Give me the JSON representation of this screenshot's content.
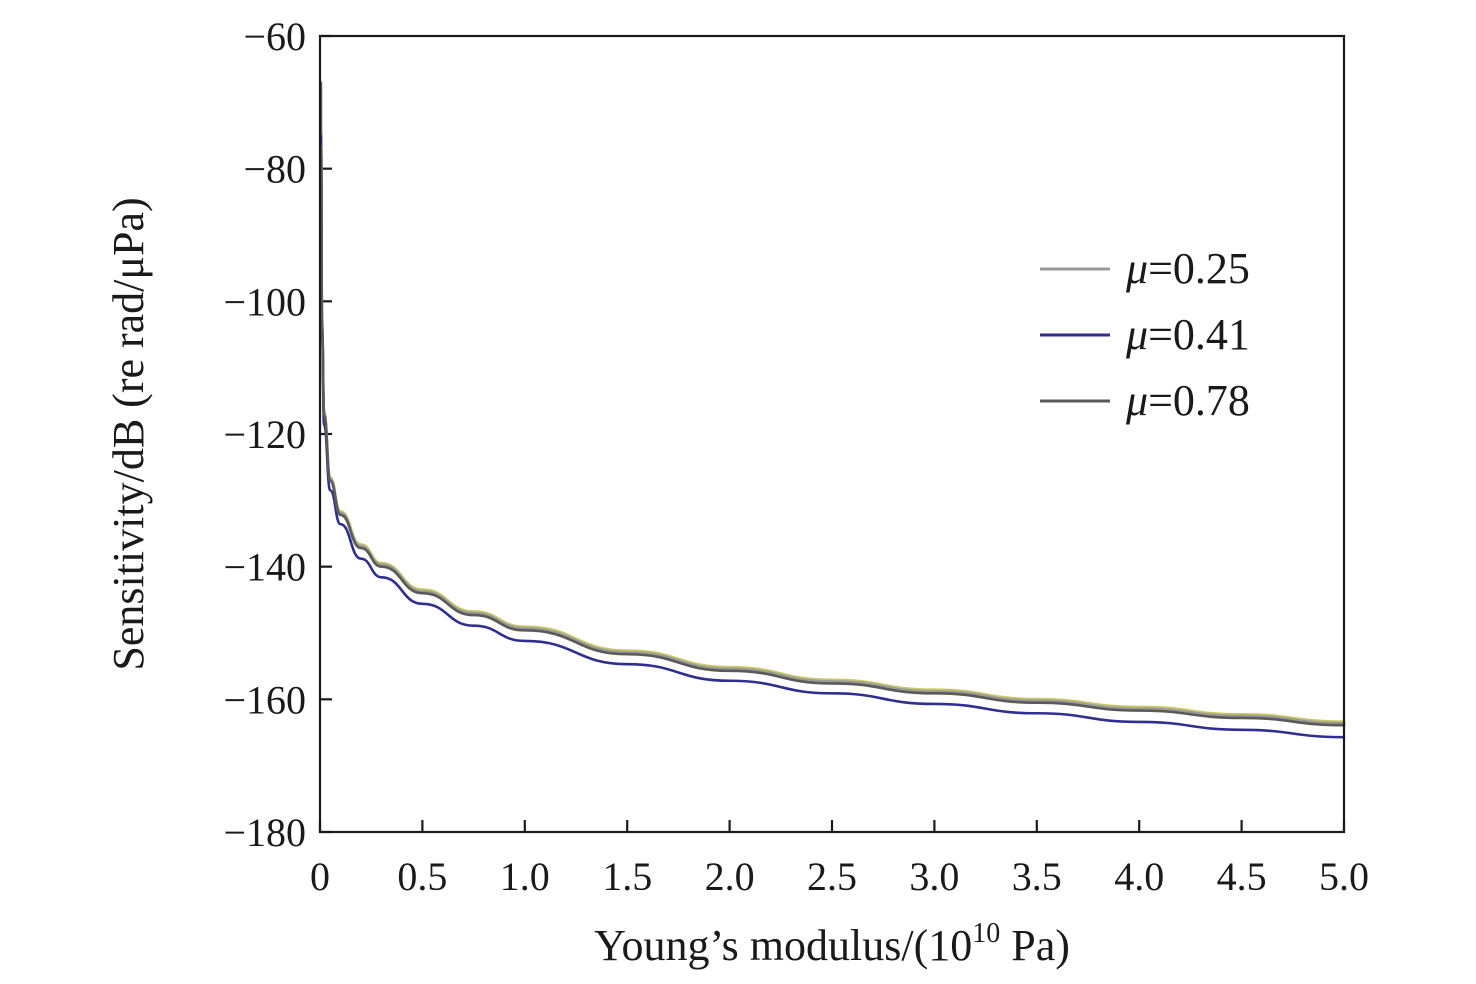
{
  "chart_data": {
    "type": "line",
    "title": "",
    "xlabel_main": "Young’s modulus/(10",
    "xlabel_exp": "10",
    "xlabel_tail": " Pa)",
    "ylabel": "Sensitivity/dB (re rad/μPa)",
    "xlim": [
      0,
      5.0
    ],
    "ylim": [
      -180,
      -60
    ],
    "x_ticks": [
      "0",
      "0.5",
      "1.0",
      "1.5",
      "2.0",
      "2.5",
      "3.0",
      "3.5",
      "4.0",
      "4.5",
      "5.0"
    ],
    "x_tick_values": [
      0,
      0.5,
      1.0,
      1.5,
      2.0,
      2.5,
      3.0,
      3.5,
      4.0,
      4.5,
      5.0
    ],
    "y_ticks": [
      "−60",
      "−80",
      "−100",
      "−120",
      "−140",
      "−160",
      "−180"
    ],
    "y_tick_values": [
      -60,
      -80,
      -100,
      -120,
      -140,
      -160,
      -180
    ],
    "grid": false,
    "legend_position": "right",
    "x": [
      0.005,
      0.01,
      0.02,
      0.05,
      0.1,
      0.2,
      0.3,
      0.5,
      0.75,
      1.0,
      1.5,
      2.0,
      2.5,
      3.0,
      3.5,
      4.0,
      4.5,
      5.0
    ],
    "series": [
      {
        "name": "μ=0.25",
        "legend_prefix": "μ",
        "legend_suffix": "=0.25",
        "color": "#9a9a9a",
        "values": [
          -74.8,
          -103.5,
          -116.9,
          -126.8,
          -131.9,
          -136.9,
          -139.7,
          -143.7,
          -147.0,
          -149.3,
          -152.9,
          -155.4,
          -157.3,
          -158.8,
          -160.2,
          -161.4,
          -162.5,
          -163.6
        ]
      },
      {
        "name": "μ=0.41",
        "legend_prefix": "μ",
        "legend_suffix": "=0.41",
        "color": "#2f2f8f",
        "values": [
          -76.5,
          -105.2,
          -118.6,
          -128.5,
          -133.6,
          -138.8,
          -141.6,
          -145.6,
          -148.9,
          -151.2,
          -154.7,
          -157.2,
          -159.1,
          -160.7,
          -162.1,
          -163.4,
          -164.6,
          -165.7
        ]
      },
      {
        "name": "μ=0.78",
        "legend_prefix": "μ",
        "legend_suffix": "=0.78",
        "color": "#5a5a5a",
        "values": [
          -75.0,
          -103.8,
          -117.2,
          -127.1,
          -132.2,
          -137.2,
          -140.0,
          -144.0,
          -147.3,
          -149.6,
          -153.2,
          -155.7,
          -157.6,
          -159.1,
          -160.5,
          -161.7,
          -162.8,
          -163.9
        ]
      }
    ],
    "extra_line_colors": [
      "#c8c864",
      "#c04040"
    ]
  }
}
